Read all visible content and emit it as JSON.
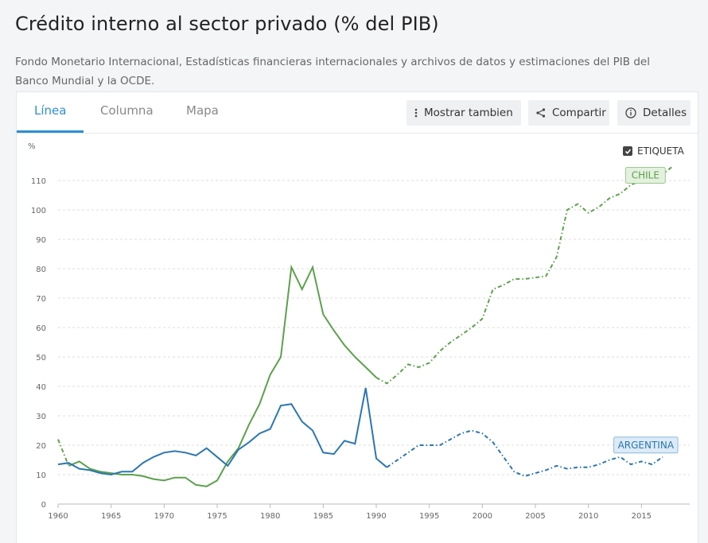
{
  "header": {
    "title": "Crédito interno al sector privado (% del PIB)",
    "subtitle": "Fondo Monetario Internacional, Estadísticas financieras internacionales y archivos de datos y estimaciones del PIB del Banco Mundial y la OCDE."
  },
  "tabs": [
    {
      "label": "Línea",
      "active": true
    },
    {
      "label": "Columna",
      "active": false
    },
    {
      "label": "Mapa",
      "active": false
    }
  ],
  "toolbar": {
    "show_also_label": "Mostrar tambien",
    "share_label": "Compartir",
    "details_label": "Detalles",
    "show_also_icon": "vertical-dots-icon",
    "share_icon": "share-icon",
    "details_icon": "info-icon"
  },
  "legend_toggle": {
    "label": "ETIQUETA",
    "checked": true
  },
  "colors": {
    "chile": "#5ca14c",
    "argentina": "#2b76b2",
    "accent": "#2d8fd5"
  },
  "chart_data": {
    "type": "line",
    "title": "",
    "xlabel": "",
    "ylabel": "%",
    "xlim": [
      1960,
      2018
    ],
    "ylim": [
      0,
      115
    ],
    "grid": true,
    "x_ticks": [
      1960,
      1965,
      1970,
      1975,
      1980,
      1985,
      1990,
      1995,
      2000,
      2005,
      2010,
      2015
    ],
    "y_ticks": [
      0,
      10,
      20,
      30,
      40,
      50,
      60,
      70,
      80,
      90,
      100,
      110
    ],
    "series": [
      {
        "name": "CHILE",
        "x": [
          1960,
          1961,
          1962,
          1963,
          1964,
          1965,
          1966,
          1967,
          1968,
          1969,
          1970,
          1971,
          1972,
          1973,
          1974,
          1975,
          1976,
          1977,
          1978,
          1979,
          1980,
          1981,
          1982,
          1983,
          1984,
          1985,
          1986,
          1987,
          1988,
          1989,
          1990,
          1991,
          1992,
          1993,
          1994,
          1995,
          1996,
          1997,
          1998,
          1999,
          2000,
          2001,
          2002,
          2003,
          2004,
          2005,
          2006,
          2007,
          2008,
          2009,
          2010,
          2011,
          2012,
          2013,
          2014,
          2015,
          2016,
          2017,
          2018
        ],
        "values": [
          22,
          13,
          14.5,
          12,
          11,
          10.5,
          10,
          10,
          9.5,
          8.5,
          8,
          9,
          9,
          6.5,
          6,
          8,
          14.5,
          19,
          27,
          34,
          44,
          50,
          80.5,
          73,
          80.5,
          64.5,
          59,
          54,
          50,
          46.5,
          43,
          41,
          44,
          47.5,
          46.5,
          48,
          52,
          55,
          57.5,
          60,
          63,
          73,
          74.5,
          76.5,
          76.5,
          77,
          77.5,
          84,
          100,
          102,
          99,
          101,
          104,
          105.5,
          108.5,
          110,
          111,
          112,
          115
        ]
      },
      {
        "name": "ARGENTINA",
        "x": [
          1960,
          1961,
          1962,
          1963,
          1964,
          1965,
          1966,
          1967,
          1968,
          1969,
          1970,
          1971,
          1972,
          1973,
          1974,
          1975,
          1976,
          1977,
          1978,
          1979,
          1980,
          1981,
          1982,
          1983,
          1984,
          1985,
          1986,
          1987,
          1988,
          1989,
          1990,
          1991,
          1992,
          1993,
          1994,
          1995,
          1996,
          1997,
          1998,
          1999,
          2000,
          2001,
          2002,
          2003,
          2004,
          2005,
          2006,
          2007,
          2008,
          2009,
          2010,
          2011,
          2012,
          2013,
          2014,
          2015,
          2016,
          2017
        ],
        "values": [
          13.5,
          14,
          12,
          11.5,
          10.5,
          10,
          11,
          11,
          14,
          16,
          17.5,
          18,
          17.5,
          16.5,
          19,
          16,
          13,
          18.5,
          21,
          24,
          25.5,
          33.5,
          34,
          28,
          25,
          17.5,
          17,
          21.5,
          20.5,
          39.5,
          15.5,
          12.5,
          15,
          17.5,
          20,
          20,
          20,
          22,
          24,
          25,
          24,
          21,
          16,
          11,
          9.5,
          10.5,
          11.5,
          13,
          12,
          12.5,
          12.5,
          13.5,
          15,
          16,
          13.5,
          14.5,
          13.5,
          16
        ]
      }
    ],
    "series_labels": [
      "CHILE",
      "ARGENTINA"
    ]
  }
}
